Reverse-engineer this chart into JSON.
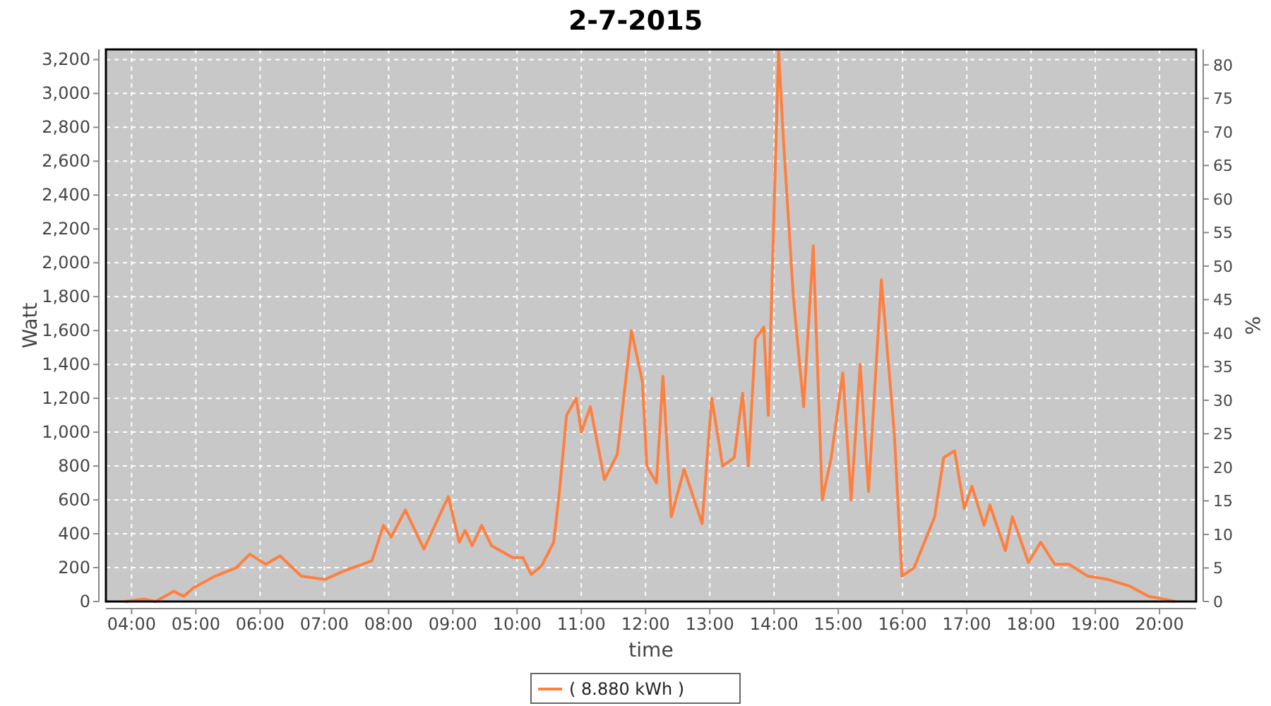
{
  "chart_data": {
    "type": "line",
    "title": "2-7-2015",
    "xlabel": "time",
    "ylabel": "Watt",
    "y2label": "%",
    "xlim": [
      3.6,
      20.57
    ],
    "ylim": [
      0,
      3260
    ],
    "y2lim": [
      0,
      82.3
    ],
    "xticks": [
      {
        "value": 4,
        "label": "04:00"
      },
      {
        "value": 5,
        "label": "05:00"
      },
      {
        "value": 6,
        "label": "06:00"
      },
      {
        "value": 7,
        "label": "07:00"
      },
      {
        "value": 8,
        "label": "08:00"
      },
      {
        "value": 9,
        "label": "09:00"
      },
      {
        "value": 10,
        "label": "10:00"
      },
      {
        "value": 11,
        "label": "11:00"
      },
      {
        "value": 12,
        "label": "12:00"
      },
      {
        "value": 13,
        "label": "13:00"
      },
      {
        "value": 14,
        "label": "14:00"
      },
      {
        "value": 15,
        "label": "15:00"
      },
      {
        "value": 16,
        "label": "16:00"
      },
      {
        "value": 17,
        "label": "17:00"
      },
      {
        "value": 18,
        "label": "18:00"
      },
      {
        "value": 19,
        "label": "19:00"
      },
      {
        "value": 20,
        "label": "20:00"
      }
    ],
    "yticks": [
      0,
      200,
      400,
      600,
      800,
      {
        "value": 1000,
        "label": "1,000"
      },
      {
        "value": 1200,
        "label": "1,200"
      },
      {
        "value": 1400,
        "label": "1,400"
      },
      {
        "value": 1600,
        "label": "1,600"
      },
      {
        "value": 1800,
        "label": "1,800"
      },
      {
        "value": 2000,
        "label": "2,000"
      },
      {
        "value": 2200,
        "label": "2,200"
      },
      {
        "value": 2400,
        "label": "2,400"
      },
      {
        "value": 2600,
        "label": "2,600"
      },
      {
        "value": 2800,
        "label": "2,800"
      },
      {
        "value": 3000,
        "label": "3,000"
      },
      {
        "value": 3200,
        "label": "3,200"
      }
    ],
    "y2ticks": [
      0,
      5,
      10,
      15,
      20,
      25,
      30,
      35,
      40,
      45,
      50,
      55,
      60,
      65,
      70,
      75,
      80
    ],
    "grid": true,
    "legend": "bottom",
    "marker": "none",
    "line_style": "solid",
    "series": [
      {
        "name": "( 8.880 kWh )",
        "color": "#ff7f3f",
        "x": [
          3.9,
          4.19,
          4.37,
          4.66,
          4.81,
          4.96,
          5.3,
          5.63,
          5.84,
          6.09,
          6.31,
          6.64,
          7.01,
          7.3,
          7.74,
          7.92,
          8.04,
          8.26,
          8.55,
          8.93,
          9.1,
          9.19,
          9.3,
          9.45,
          9.6,
          9.93,
          10.09,
          10.22,
          10.38,
          10.57,
          10.66,
          10.77,
          10.92,
          11.0,
          11.14,
          11.36,
          11.56,
          11.78,
          11.95,
          12.02,
          12.17,
          12.27,
          12.4,
          12.6,
          12.88,
          13.03,
          13.2,
          13.38,
          13.51,
          13.6,
          13.71,
          13.84,
          13.91,
          14.07,
          14.15,
          14.3,
          14.46,
          14.61,
          14.75,
          14.89,
          15.07,
          15.2,
          15.34,
          15.47,
          15.67,
          15.87,
          15.99,
          16.18,
          16.5,
          16.64,
          16.81,
          16.96,
          17.08,
          17.27,
          17.36,
          17.6,
          17.71,
          17.96,
          18.15,
          18.37,
          18.59,
          18.88,
          19.2,
          19.54,
          19.83,
          20.13,
          20.24
        ],
        "values": [
          0,
          15,
          0,
          60,
          30,
          80,
          150,
          200,
          280,
          220,
          270,
          150,
          130,
          180,
          240,
          450,
          380,
          540,
          310,
          620,
          350,
          420,
          330,
          450,
          330,
          260,
          260,
          160,
          210,
          350,
          650,
          1100,
          1200,
          1000,
          1150,
          720,
          870,
          1600,
          1300,
          800,
          700,
          1330,
          500,
          780,
          460,
          1200,
          800,
          850,
          1230,
          800,
          1550,
          1620,
          1100,
          3250,
          2700,
          1800,
          1150,
          2100,
          600,
          850,
          1350,
          600,
          1400,
          650,
          1900,
          1000,
          150,
          200,
          500,
          850,
          890,
          550,
          680,
          450,
          570,
          300,
          500,
          230,
          350,
          220,
          220,
          150,
          130,
          90,
          30,
          10,
          0
        ]
      }
    ]
  }
}
